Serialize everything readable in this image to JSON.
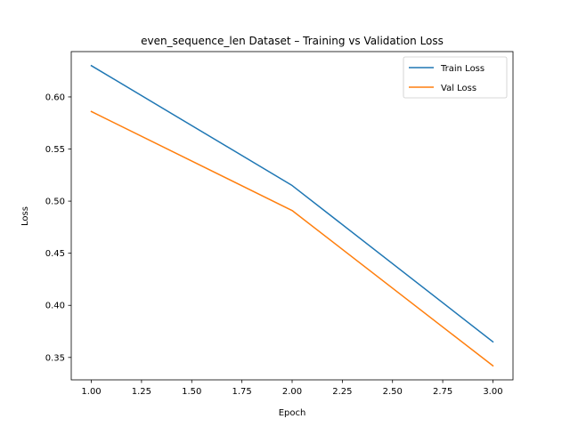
{
  "chart_data": {
    "type": "line",
    "title": "even_sequence_len Dataset – Training vs Validation Loss",
    "xlabel": "Epoch",
    "ylabel": "Loss",
    "xlim": [
      0.9,
      3.1
    ],
    "ylim": [
      0.3285,
      0.6435
    ],
    "xticks": [
      1.0,
      1.25,
      1.5,
      1.75,
      2.0,
      2.25,
      2.5,
      2.75,
      3.0
    ],
    "xtick_labels": [
      "1.00",
      "1.25",
      "1.50",
      "1.75",
      "2.00",
      "2.25",
      "2.50",
      "2.75",
      "3.00"
    ],
    "yticks": [
      0.35,
      0.4,
      0.45,
      0.5,
      0.55,
      0.6
    ],
    "ytick_labels": [
      "0.35",
      "0.40",
      "0.45",
      "0.50",
      "0.55",
      "0.60"
    ],
    "grid": false,
    "legend_position": "upper right",
    "x": [
      1,
      2,
      3
    ],
    "series": [
      {
        "name": "Train Loss",
        "color": "#1f77b4",
        "values": [
          0.63,
          0.515,
          0.365
        ]
      },
      {
        "name": "Val Loss",
        "color": "#ff7f0e",
        "values": [
          0.586,
          0.491,
          0.342
        ]
      }
    ]
  }
}
